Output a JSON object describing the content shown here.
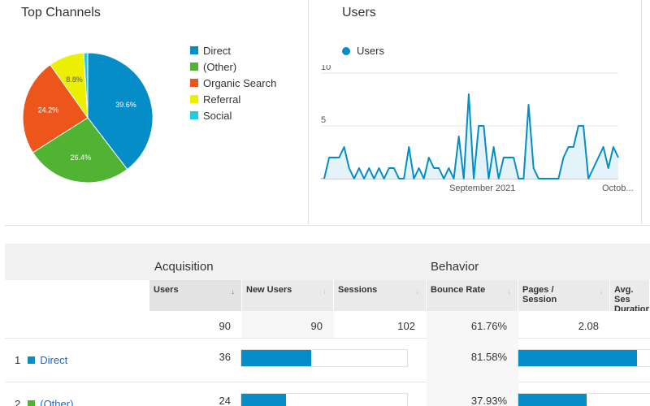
{
  "channels_card": {
    "title": "Top Channels",
    "legend": [
      {
        "label": "Direct",
        "color": "#058dc7"
      },
      {
        "label": "(Other)",
        "color": "#50b432"
      },
      {
        "label": "Organic Search",
        "color": "#ed561b"
      },
      {
        "label": "Referral",
        "color": "#edef00"
      },
      {
        "label": "Social",
        "color": "#24cbe5"
      }
    ]
  },
  "users_card": {
    "title": "Users",
    "legend_label": "Users",
    "line_color": "#058dc7"
  },
  "chart_data": [
    {
      "type": "pie",
      "title": "Top Channels",
      "categories": [
        "Direct",
        "(Other)",
        "Organic Search",
        "Referral",
        "Social"
      ],
      "values": [
        39.6,
        26.4,
        24.2,
        8.8,
        1.0
      ],
      "labels": [
        "39.6%",
        "26.4%",
        "24.2%",
        "8.8%",
        ""
      ],
      "colors": [
        "#058dc7",
        "#50b432",
        "#ed561b",
        "#edef00",
        "#24cbe5"
      ],
      "legend": "right"
    },
    {
      "type": "area",
      "title": "Users",
      "series": [
        {
          "name": "Users",
          "values": [
            0,
            2,
            2,
            2,
            3,
            1,
            0,
            1,
            0,
            1,
            0,
            1,
            0,
            1,
            1,
            0,
            0,
            3,
            0,
            1,
            0,
            2,
            1,
            1,
            0,
            1,
            0,
            4,
            0,
            8,
            0,
            5,
            5,
            0,
            3,
            0,
            2,
            2,
            2,
            0,
            0,
            7,
            1,
            0,
            0,
            0,
            0,
            0,
            2,
            3,
            3,
            5,
            5,
            0,
            1,
            2,
            3,
            1,
            3,
            2
          ]
        }
      ],
      "x_tick_labels": [
        "September 2021",
        "Octob..."
      ],
      "y_ticks": [
        5,
        10
      ],
      "ylim": [
        0,
        10
      ],
      "grid": true,
      "legend": "top-left"
    }
  ],
  "table": {
    "groups": [
      "Acquisition",
      "Behavior"
    ],
    "columns": [
      "Users",
      "New Users",
      "Sessions",
      "Bounce Rate",
      "Pages / Session",
      "Avg. Ses Duration"
    ],
    "sort_arrow": "↓",
    "arrow": "↓",
    "totals": [
      "90",
      "90",
      "102",
      "61.76%",
      "2.08"
    ],
    "rows": [
      {
        "rank": "1",
        "name": "Direct",
        "color": "#058dc7",
        "users": "36",
        "new_users_share": 0.42,
        "bounce": "81.58%",
        "pages_share": 0.9
      },
      {
        "rank": "2",
        "name": "(Other)",
        "color": "#50b432",
        "users": "24",
        "new_users_share": 0.27,
        "bounce": "37.93%",
        "pages_share": 0.52
      }
    ]
  }
}
